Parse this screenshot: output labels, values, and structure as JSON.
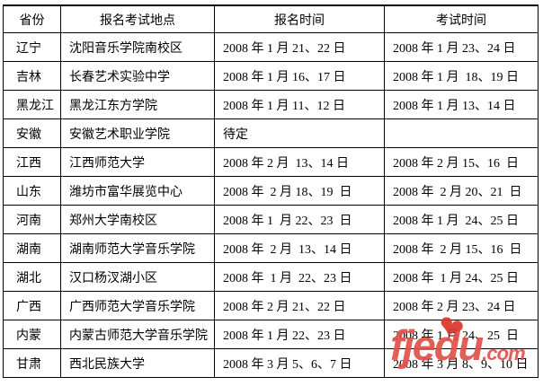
{
  "table": {
    "headers": [
      "省份",
      "报名考试地点",
      "报名时间",
      "考试时间"
    ],
    "rows": [
      {
        "province": "辽宁",
        "location": "沈阳音乐学院南校区",
        "reg_time": "2008 年 1 月 21、22 日",
        "exam_time": "2008 年 1 月 23、24 日"
      },
      {
        "province": "吉林",
        "location": "长春艺术实验中学",
        "reg_time": "2008 年 1 月 16、17 日",
        "exam_time": "2008 年 1 月  18、19 日"
      },
      {
        "province": "黑龙江",
        "location": "黑龙江东方学院",
        "reg_time": "2008 年 1 月 11、12 日",
        "exam_time": "2008 年 1 月 13、14 日"
      },
      {
        "province": "安徽",
        "location": "安徽艺术职业学院",
        "reg_time": "待定",
        "exam_time": ""
      },
      {
        "province": "江西",
        "location": "江西师范大学",
        "reg_time": "2008 年 2 月  13、14 日",
        "exam_time": "2008 年 2 月 15、16  日"
      },
      {
        "province": "山东",
        "location": "潍坊市富华展览中心",
        "reg_time": "2008 年  2 月 18、19  日",
        "exam_time": "2008 年  2 月 20、21  日"
      },
      {
        "province": "河南",
        "location": "郑州大学南校区",
        "reg_time": "2008 年 1  月 22、23  日",
        "exam_time": "2008 年 1 月  24、25 日"
      },
      {
        "province": "湖南",
        "location": "湖南师范大学音乐学院",
        "reg_time": "2008 年  2 月  13、14 日",
        "exam_time": "2008 年  2 月 15、16  日"
      },
      {
        "province": "湖北",
        "location": "汉口杨汊湖小区",
        "reg_time": "2008 年  1 月  22、23 日",
        "exam_time": "2008 年  1 月 24、25 日"
      },
      {
        "province": "广西",
        "location": "广西师范大学音乐学院",
        "reg_time": "2008 年 2 月 21、22 日",
        "exam_time": "2008 年 2 月 23、24 日"
      },
      {
        "province": "内蒙",
        "location": "内蒙古师范大学音乐学院",
        "reg_time": "2008 年 1 月 22、23 日",
        "exam_time": "2008 年 1 月 24、25  日"
      },
      {
        "province": "甘肃",
        "location": "西北民族大学",
        "reg_time": "2008 年 3 月 5、6、7 日",
        "exam_time": "2008 年 3 月 8、9、10 日"
      }
    ]
  },
  "watermark": {
    "brand": "fjedu",
    "suffix": ".com",
    "text_color": "#e2514a",
    "heart_color": "#dc372c",
    "heart_icon": "❤"
  }
}
